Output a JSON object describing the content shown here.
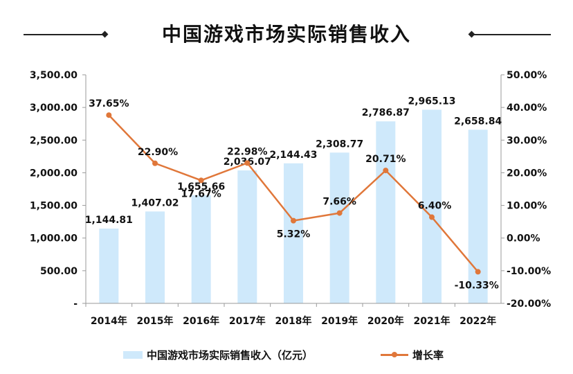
{
  "header": {
    "title": "中国游戏市场实际销售收入"
  },
  "chart_data": {
    "type": "bar+line",
    "title": "中国游戏市场实际销售收入",
    "categories": [
      "2014年",
      "2015年",
      "2016年",
      "2017年",
      "2018年",
      "2019年",
      "2020年",
      "2021年",
      "2022年"
    ],
    "series": [
      {
        "name": "中国游戏市场实际销售收入（亿元）",
        "kind": "bar",
        "axis": "left",
        "color": "#cfe9fb",
        "values": [
          1144.81,
          1407.02,
          1655.66,
          2036.07,
          2144.43,
          2308.77,
          2786.87,
          2965.13,
          2658.84
        ],
        "labels": [
          "1,144.81",
          "1,407.02",
          "1,655.66",
          "2,036.07",
          "2,144.43",
          "2,308.77",
          "2,786.87",
          "2,965.13",
          "2,658.84"
        ]
      },
      {
        "name": "增长率",
        "kind": "line",
        "axis": "right",
        "color": "#e0773a",
        "values": [
          37.65,
          22.9,
          17.67,
          22.98,
          5.32,
          7.66,
          20.71,
          6.4,
          -10.33
        ],
        "labels": [
          "37.65%",
          "22.90%",
          "17.67%",
          "22.98%",
          "5.32%",
          "7.66%",
          "20.71%",
          "6.40%",
          "-10.33%"
        ]
      }
    ],
    "left_axis": {
      "ylim": [
        0,
        3500
      ],
      "ticks": [
        0,
        500,
        1000,
        1500,
        2000,
        2500,
        3000,
        3500
      ],
      "tick_labels": [
        "-",
        "500.00",
        "1,000.00",
        "1,500.00",
        "2,000.00",
        "2,500.00",
        "3,000.00",
        "3,500.00"
      ]
    },
    "right_axis": {
      "ylim": [
        -20,
        50
      ],
      "ticks": [
        -20,
        -10,
        0,
        10,
        20,
        30,
        40,
        50
      ],
      "tick_labels": [
        "-20.00%",
        "-10.00%",
        "0.00%",
        "10.00%",
        "20.00%",
        "30.00%",
        "40.00%",
        "50.00%"
      ]
    },
    "grid": false,
    "legend_position": "bottom"
  },
  "legend": {
    "bar_label": "中国游戏市场实际销售收入（亿元）",
    "line_label": "增长率"
  }
}
